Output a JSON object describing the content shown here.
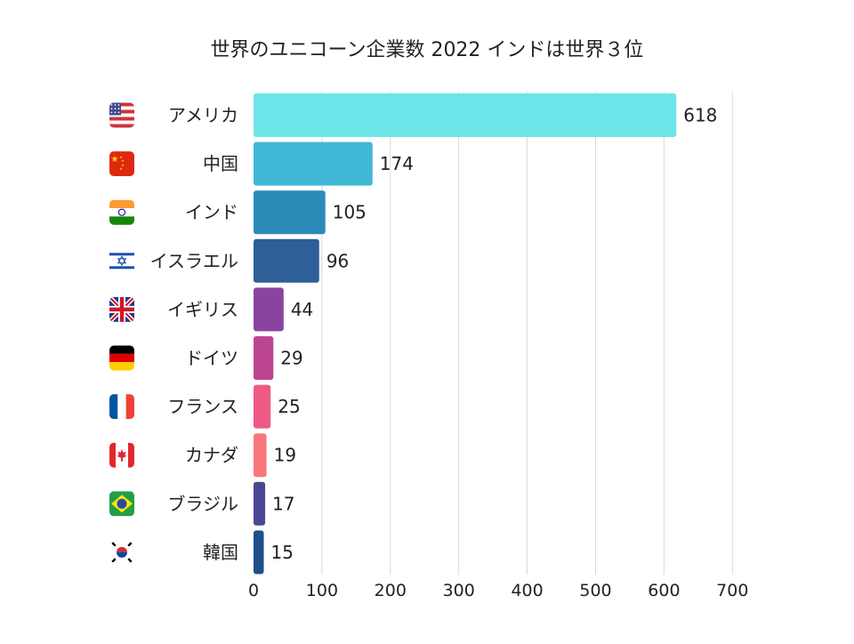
{
  "title": "世界のユニコーン企業数 2022 インドは世界３位",
  "chart_data": {
    "type": "bar",
    "orientation": "horizontal",
    "categories": [
      "アメリカ",
      "中国",
      "インド",
      "イスラエル",
      "イギリス",
      "ドイツ",
      "フランス",
      "カナダ",
      "ブラジル",
      "韓国"
    ],
    "values": [
      618,
      174,
      105,
      96,
      44,
      29,
      25,
      19,
      17,
      15
    ],
    "flag_icons": [
      "us-flag-icon",
      "china-flag-icon",
      "india-flag-icon",
      "israel-flag-icon",
      "uk-flag-icon",
      "germany-flag-icon",
      "france-flag-icon",
      "canada-flag-icon",
      "brazil-flag-icon",
      "korea-flag-icon"
    ],
    "colors": [
      "#6ce5e8",
      "#41b8d5",
      "#2d8bba",
      "#2f5f98",
      "#8a44a0",
      "#bc4592",
      "#ee5a83",
      "#f9777a",
      "#4a4795",
      "#1e4e8c"
    ],
    "xlim": [
      0,
      700
    ],
    "xticks": [
      0,
      100,
      200,
      300,
      400,
      500,
      600,
      700
    ],
    "grid": true,
    "title": "世界のユニコーン企業数 2022 インドは世界３位",
    "xlabel": "",
    "ylabel": ""
  }
}
